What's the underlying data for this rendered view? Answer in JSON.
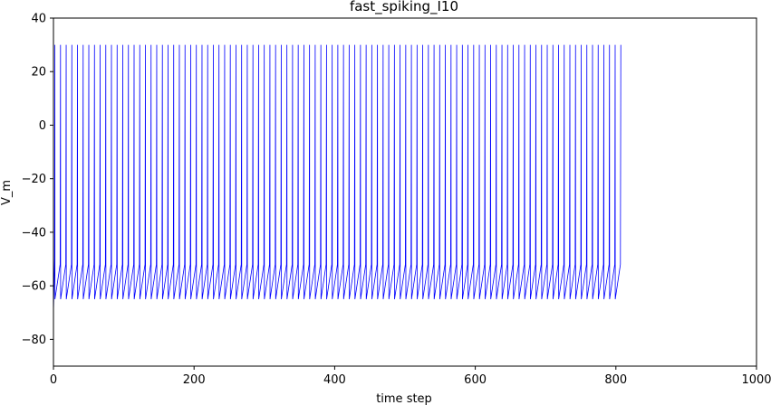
{
  "chart_data": {
    "type": "line",
    "title": "fast_spiking_I10",
    "xlabel": "time step",
    "ylabel": "V_m",
    "xlim": [
      0,
      1000
    ],
    "ylim": [
      -90,
      40
    ],
    "xticks": [
      0,
      200,
      400,
      600,
      800,
      1000
    ],
    "yticks": [
      -80,
      -60,
      -40,
      -20,
      0,
      20,
      40
    ],
    "grid": false,
    "legend": "none",
    "series": [
      {
        "color": "#0000ff",
        "description_values": {
          "peak": 30,
          "reset": -65,
          "initial": -70,
          "spike_count": 100,
          "first_spike_time": 2,
          "interspike_interval": 7.9
        }
      }
    ]
  },
  "colors": {
    "line": "#0000ff",
    "axes": "#000000",
    "background": "#ffffff"
  }
}
